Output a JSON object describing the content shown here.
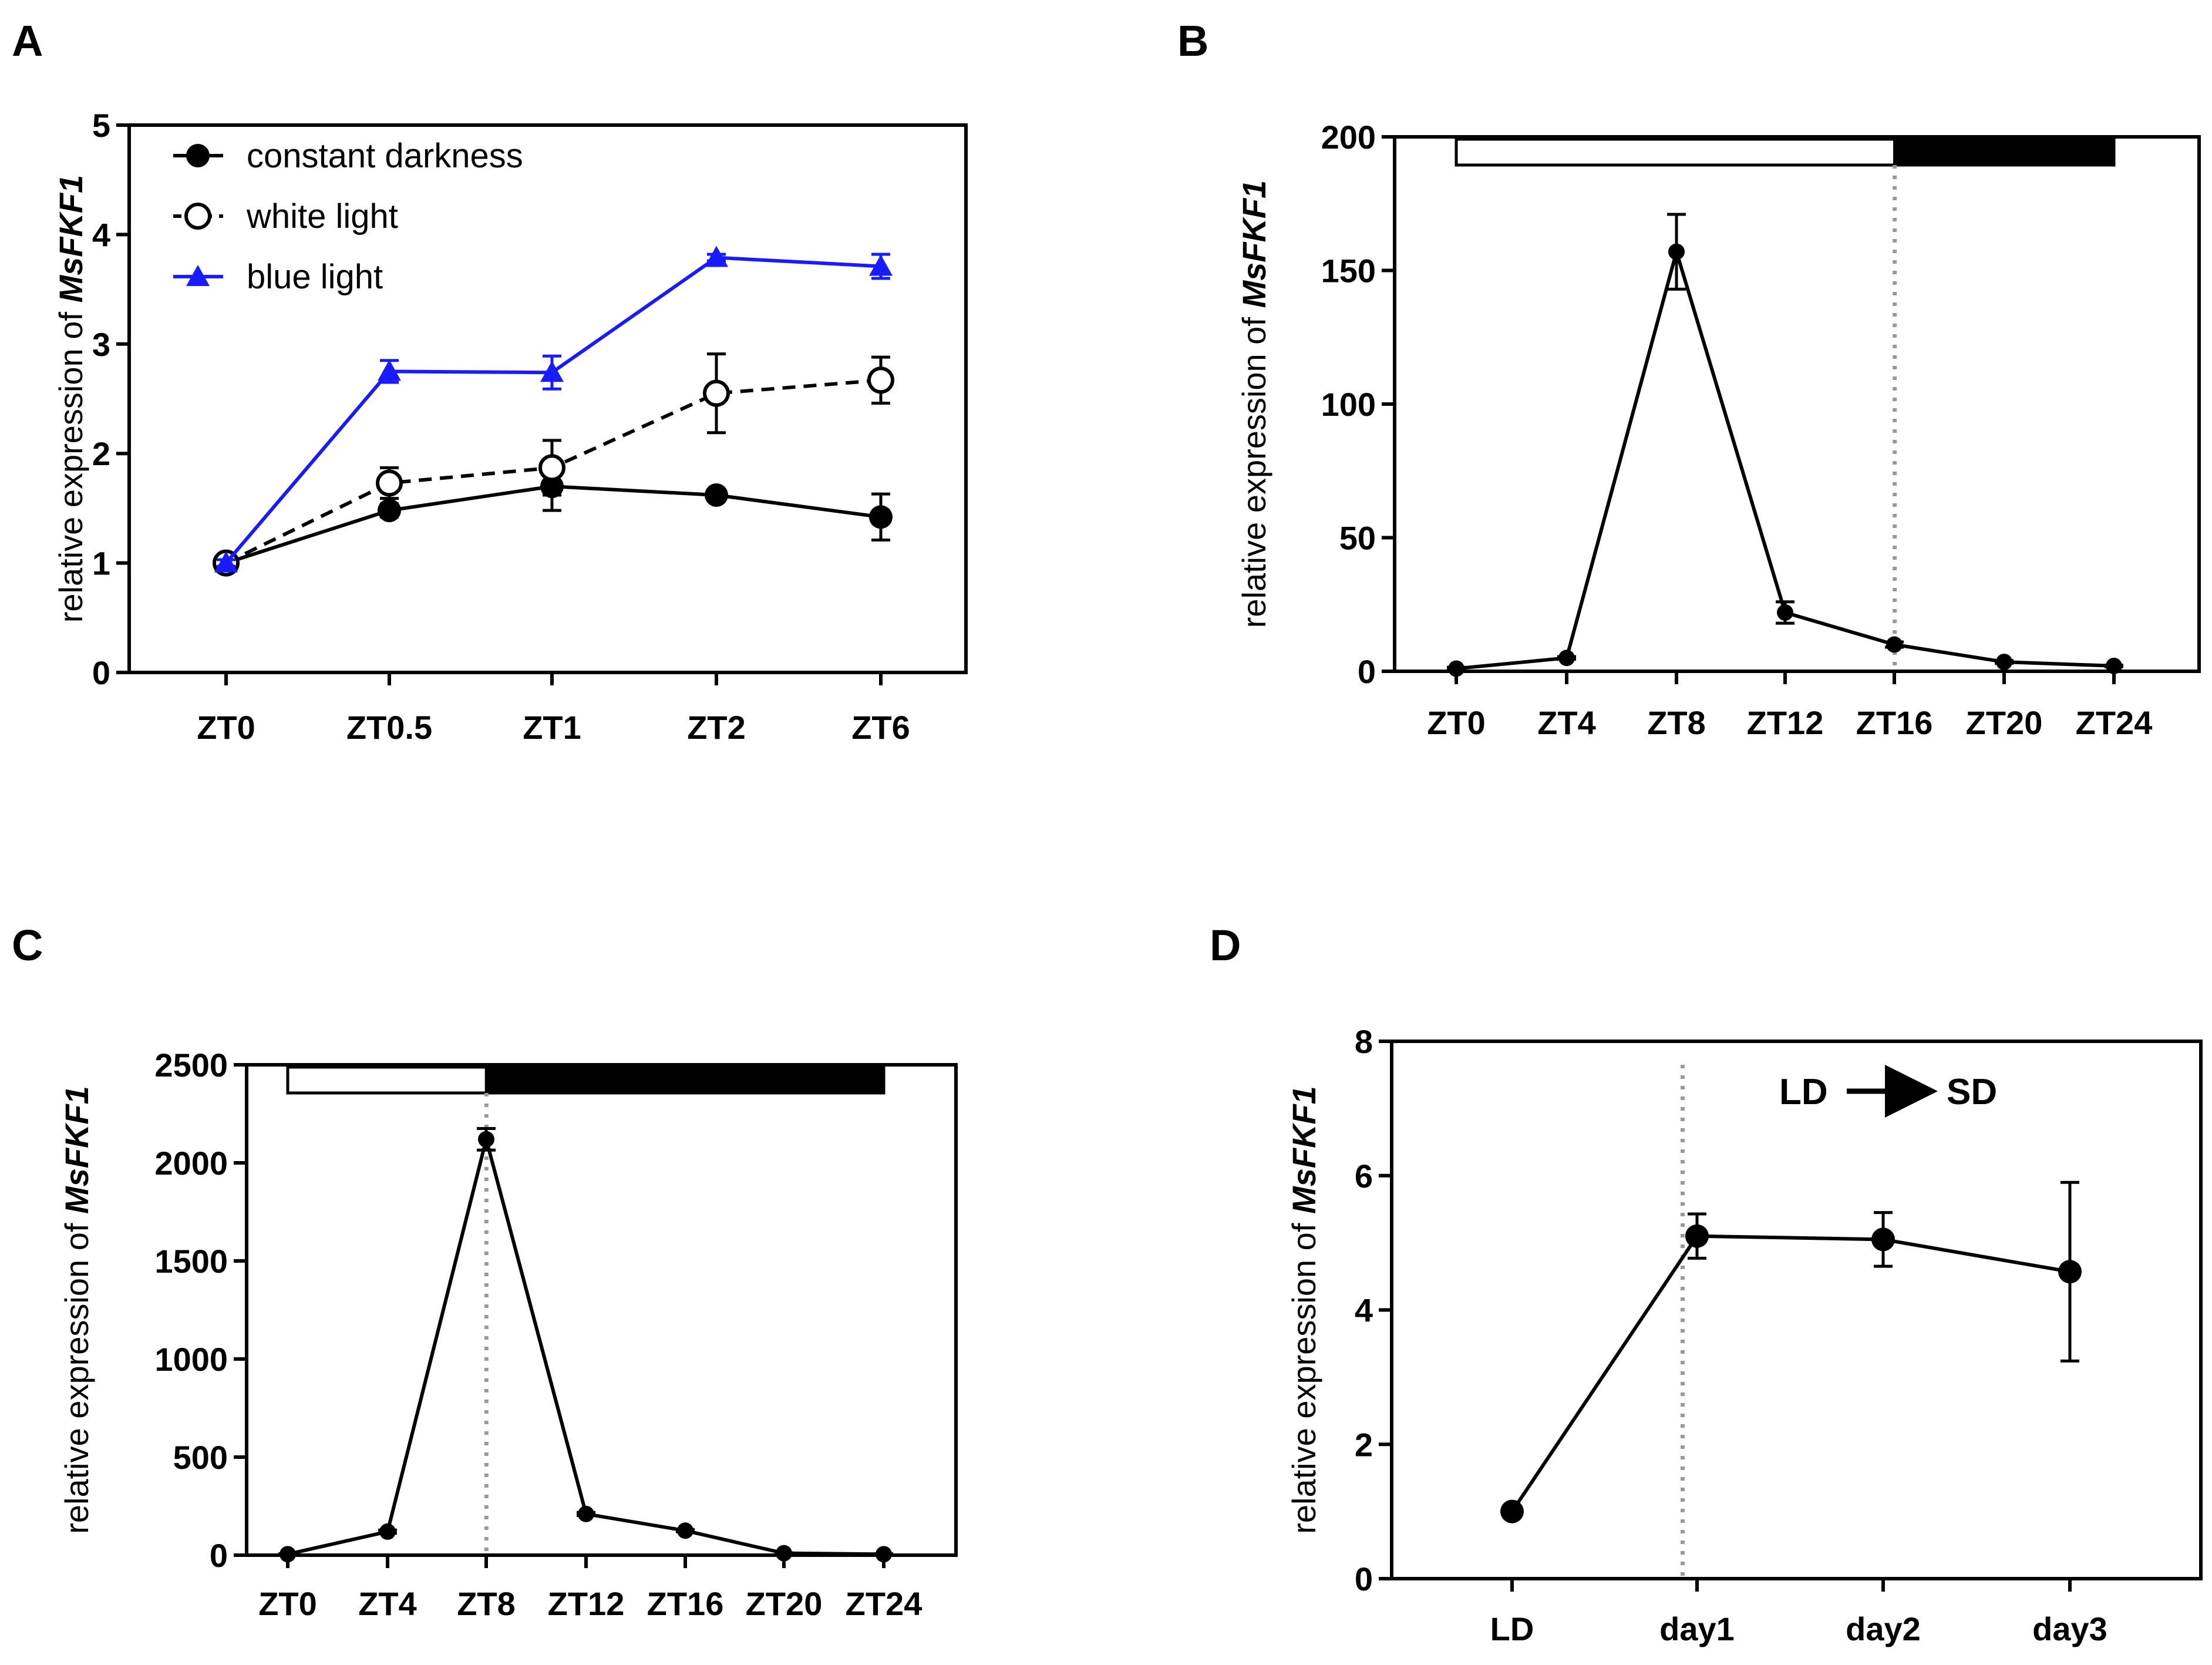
{
  "chart_data": [
    {
      "panel": "A",
      "type": "line",
      "ylabel_prefix": "relative expression of ",
      "ylabel_gene": "MsFKF1",
      "categories": [
        "ZT0",
        "ZT0.5",
        "ZT1",
        "ZT2",
        "ZT6"
      ],
      "ylim": [
        0,
        5
      ],
      "yticks": [
        0,
        1,
        2,
        3,
        4,
        5
      ],
      "legend_position": "top-left",
      "series": [
        {
          "name": "constant darkness",
          "values": [
            1.0,
            1.48,
            1.7,
            1.62,
            1.42
          ],
          "errors": [
            0.03,
            0.06,
            0.22,
            0.03,
            0.21
          ],
          "color": "#000000",
          "marker": "circle-filled",
          "dashed": false
        },
        {
          "name": "white light",
          "values": [
            1.0,
            1.73,
            1.87,
            2.55,
            2.67
          ],
          "errors": [
            0.03,
            0.14,
            0.25,
            0.36,
            0.21
          ],
          "color": "#000000",
          "marker": "circle-open",
          "dashed": true
        },
        {
          "name": "blue light",
          "values": [
            1.0,
            2.75,
            2.74,
            3.79,
            3.71
          ],
          "errors": [
            0.03,
            0.1,
            0.15,
            0.03,
            0.11
          ],
          "color": "#1a1aff",
          "marker": "triangle",
          "dashed": false
        }
      ]
    },
    {
      "panel": "B",
      "type": "line",
      "ylabel_prefix": "relative expression of ",
      "ylabel_gene": "MsFKF1",
      "categories": [
        "ZT0",
        "ZT4",
        "ZT8",
        "ZT12",
        "ZT16",
        "ZT20",
        "ZT24"
      ],
      "x": [
        0,
        4,
        8,
        12,
        16,
        20,
        24
      ],
      "ylim": [
        0,
        200
      ],
      "yticks": [
        0,
        50,
        100,
        150,
        200
      ],
      "light_bar": {
        "light": [
          0,
          16
        ],
        "dark": [
          16,
          24
        ]
      },
      "dotted_line_x": 16,
      "series": [
        {
          "values": [
            1,
            5,
            157,
            22,
            10,
            3.5,
            2
          ],
          "errors": [
            0.5,
            0.5,
            14,
            4,
            1,
            0.5,
            0.3
          ]
        }
      ]
    },
    {
      "panel": "C",
      "type": "line",
      "ylabel_prefix": "relative expression of ",
      "ylabel_gene": "MsFKF1",
      "categories": [
        "ZT0",
        "ZT4",
        "ZT8",
        "ZT12",
        "ZT16",
        "ZT20",
        "ZT24"
      ],
      "x": [
        0,
        4,
        8,
        12,
        16,
        20,
        24
      ],
      "ylim": [
        0,
        2500
      ],
      "yticks": [
        0,
        500,
        1000,
        1500,
        2000,
        2500
      ],
      "light_bar": {
        "light": [
          0,
          8
        ],
        "dark": [
          8,
          24
        ]
      },
      "dotted_line_x": 8,
      "series": [
        {
          "values": [
            5,
            120,
            2120,
            210,
            125,
            10,
            5
          ],
          "errors": [
            2,
            8,
            55,
            8,
            6,
            2,
            2
          ]
        }
      ]
    },
    {
      "panel": "D",
      "type": "line",
      "ylabel_prefix": "relative expression of ",
      "ylabel_gene": "MsFKF1",
      "categories": [
        "LD",
        "day1",
        "day2",
        "day3"
      ],
      "ylim": [
        0,
        8
      ],
      "yticks": [
        0,
        2,
        4,
        6,
        8
      ],
      "dotted_line_between": [
        0,
        1
      ],
      "annotation": {
        "from": "LD",
        "to": "SD"
      },
      "series": [
        {
          "values": [
            1.0,
            5.1,
            5.05,
            4.57
          ],
          "errors": [
            0.05,
            0.33,
            0.4,
            1.33
          ]
        }
      ]
    }
  ]
}
